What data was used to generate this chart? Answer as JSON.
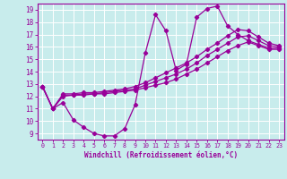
{
  "xlabel": "Windchill (Refroidissement éolien,°C)",
  "bg_color": "#c8ecec",
  "grid_color": "#ffffff",
  "line_color": "#990099",
  "xlim": [
    -0.5,
    23.5
  ],
  "ylim": [
    8.5,
    19.5
  ],
  "xticks": [
    0,
    1,
    2,
    3,
    4,
    5,
    6,
    7,
    8,
    9,
    10,
    11,
    12,
    13,
    14,
    15,
    16,
    17,
    18,
    19,
    20,
    21,
    22,
    23
  ],
  "yticks": [
    9,
    10,
    11,
    12,
    13,
    14,
    15,
    16,
    17,
    18,
    19
  ],
  "line1_x": [
    0,
    1,
    2,
    3,
    4,
    5,
    6,
    7,
    8,
    9,
    10,
    11,
    12,
    13,
    14,
    15,
    16,
    17,
    18,
    19,
    20,
    21,
    22,
    23
  ],
  "line1_y": [
    12.8,
    11.0,
    11.5,
    10.1,
    9.5,
    9.0,
    8.8,
    8.8,
    9.4,
    11.3,
    15.5,
    18.6,
    17.3,
    14.1,
    14.6,
    18.4,
    19.1,
    19.3,
    17.7,
    17.0,
    16.5,
    16.2,
    15.9,
    15.9
  ],
  "line2_x": [
    0,
    1,
    2,
    3,
    4,
    5,
    6,
    7,
    8,
    9,
    10,
    11,
    12,
    13,
    14,
    15,
    16,
    17,
    18,
    19,
    20,
    21,
    22,
    23
  ],
  "line2_y": [
    12.8,
    11.0,
    12.0,
    12.1,
    12.1,
    12.2,
    12.2,
    12.3,
    12.4,
    12.5,
    12.7,
    12.9,
    13.1,
    13.4,
    13.8,
    14.2,
    14.7,
    15.2,
    15.7,
    16.1,
    16.4,
    16.1,
    15.8,
    15.8
  ],
  "line3_x": [
    0,
    1,
    2,
    3,
    4,
    5,
    6,
    7,
    8,
    9,
    10,
    11,
    12,
    13,
    14,
    15,
    16,
    17,
    18,
    19,
    20,
    21,
    22,
    23
  ],
  "line3_y": [
    12.8,
    11.0,
    12.1,
    12.1,
    12.2,
    12.2,
    12.3,
    12.4,
    12.5,
    12.6,
    12.9,
    13.2,
    13.5,
    13.8,
    14.2,
    14.7,
    15.3,
    15.8,
    16.3,
    16.8,
    16.9,
    16.5,
    16.1,
    16.0
  ],
  "line4_x": [
    0,
    1,
    2,
    3,
    4,
    5,
    6,
    7,
    8,
    9,
    10,
    11,
    12,
    13,
    14,
    15,
    16,
    17,
    18,
    19,
    20,
    21,
    22,
    23
  ],
  "line4_y": [
    12.8,
    11.0,
    12.2,
    12.2,
    12.3,
    12.3,
    12.4,
    12.5,
    12.6,
    12.8,
    13.1,
    13.5,
    13.9,
    14.3,
    14.7,
    15.2,
    15.8,
    16.3,
    16.9,
    17.4,
    17.3,
    16.8,
    16.3,
    16.1
  ]
}
